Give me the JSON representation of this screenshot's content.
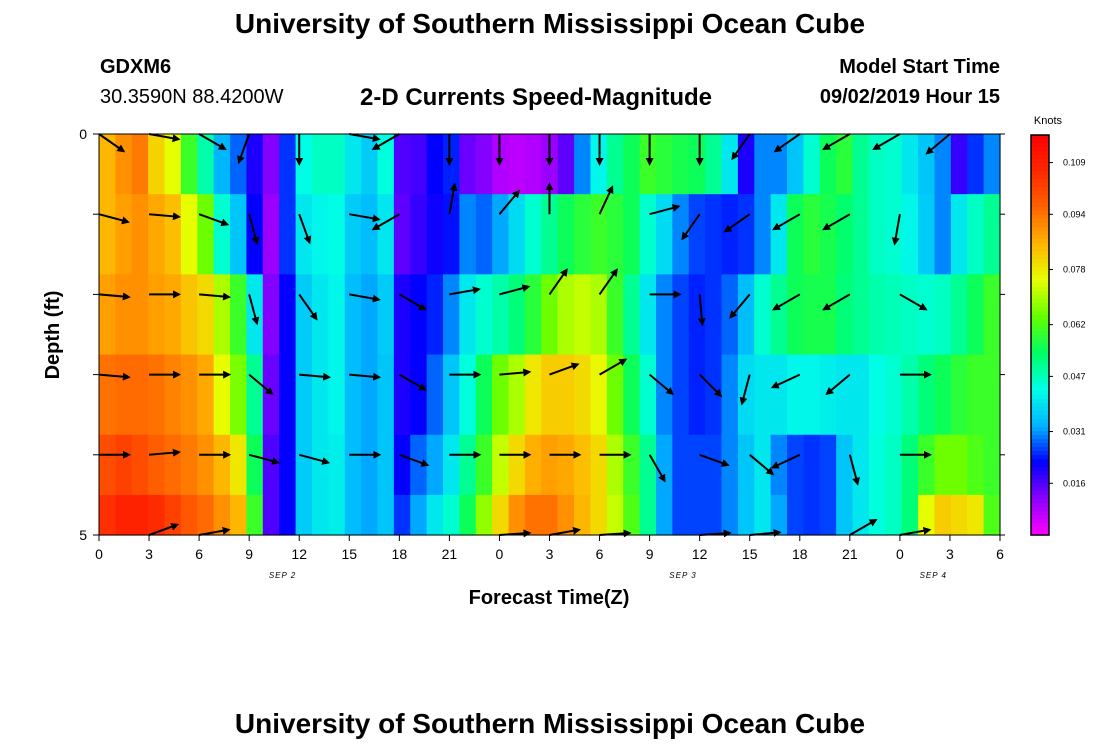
{
  "header": {
    "title": "University of Southern Mississippi Ocean Cube",
    "station_id": "GDXM6",
    "station_coords": "30.3590N 88.4200W",
    "plot_title": "2-D Currents Speed-Magnitude",
    "model_label": "Model Start Time",
    "model_time": "09/02/2019 Hour 15"
  },
  "footer": {
    "title": "University of Southern Mississippi Ocean Cube"
  },
  "chart_data": {
    "type": "heatmap",
    "xlabel": "Forecast Time(Z)",
    "ylabel": "Depth (ft)",
    "x_tick_labels": [
      "0",
      "3",
      "6",
      "9",
      "12",
      "15",
      "18",
      "21",
      "0",
      "3",
      "6",
      "9",
      "12",
      "15",
      "18",
      "21",
      "0",
      "3",
      "6"
    ],
    "date_labels": [
      {
        "text": "SEP 2",
        "hour": 11
      },
      {
        "text": "SEP 3",
        "hour": 35
      },
      {
        "text": "SEP 4",
        "hour": 50
      }
    ],
    "y_tick_labels": [
      "0",
      "5"
    ],
    "x_range_hours": [
      0,
      54
    ],
    "depth_range_ft": [
      0,
      5
    ],
    "colorbar": {
      "unit": "Knots",
      "min": 0.001,
      "max": 0.117,
      "ticks": [
        "0.109",
        "0.094",
        "0.078",
        "0.062",
        "0.047",
        "0.031",
        "0.016"
      ],
      "tick_values": [
        0.109,
        0.094,
        0.078,
        0.062,
        0.047,
        0.031,
        0.016
      ],
      "colors": [
        "#ff00ff",
        "#8a00ff",
        "#0000ff",
        "#00b4ff",
        "#00ffe6",
        "#00ff64",
        "#64ff00",
        "#e6ff00",
        "#ffb400",
        "#ff6400",
        "#ff2800",
        "#ff0000"
      ]
    },
    "depth_levels_ft": [
      0.25,
      1.25,
      2.25,
      3.25,
      4.25,
      4.75
    ],
    "speed_knots": [
      [
        0.085,
        0.09,
        0.093,
        0.081,
        0.075,
        0.06,
        0.048,
        0.033,
        0.028,
        0.02,
        0.012,
        0.025,
        0.043,
        0.046,
        0.046,
        0.04,
        0.036,
        0.044,
        0.016,
        0.017,
        0.022,
        0.024,
        0.014,
        0.012,
        0.008,
        0.007,
        0.008,
        0.01,
        0.015,
        0.03,
        0.042,
        0.05,
        0.055,
        0.06,
        0.058,
        0.056,
        0.055,
        0.05,
        0.04,
        0.02,
        0.03,
        0.03,
        0.035,
        0.045,
        0.055,
        0.058,
        0.05,
        0.046,
        0.045,
        0.04,
        0.035,
        0.03,
        0.018,
        0.025,
        0.03
      ],
      [
        0.085,
        0.088,
        0.09,
        0.087,
        0.084,
        0.075,
        0.065,
        0.045,
        0.035,
        0.022,
        0.01,
        0.025,
        0.04,
        0.042,
        0.043,
        0.036,
        0.034,
        0.04,
        0.015,
        0.018,
        0.021,
        0.023,
        0.03,
        0.028,
        0.032,
        0.038,
        0.045,
        0.05,
        0.055,
        0.058,
        0.06,
        0.058,
        0.055,
        0.045,
        0.038,
        0.03,
        0.026,
        0.025,
        0.024,
        0.025,
        0.03,
        0.04,
        0.055,
        0.058,
        0.056,
        0.053,
        0.05,
        0.046,
        0.045,
        0.042,
        0.036,
        0.03,
        0.04,
        0.046,
        0.05
      ],
      [
        0.088,
        0.09,
        0.09,
        0.088,
        0.087,
        0.083,
        0.08,
        0.07,
        0.06,
        0.04,
        0.012,
        0.022,
        0.036,
        0.04,
        0.042,
        0.034,
        0.032,
        0.036,
        0.02,
        0.022,
        0.024,
        0.03,
        0.04,
        0.045,
        0.048,
        0.052,
        0.058,
        0.065,
        0.07,
        0.072,
        0.07,
        0.06,
        0.05,
        0.04,
        0.03,
        0.026,
        0.024,
        0.025,
        0.028,
        0.034,
        0.045,
        0.05,
        0.055,
        0.056,
        0.056,
        0.052,
        0.05,
        0.048,
        0.047,
        0.046,
        0.045,
        0.046,
        0.05,
        0.055,
        0.06
      ],
      [
        0.094,
        0.095,
        0.095,
        0.094,
        0.092,
        0.09,
        0.087,
        0.075,
        0.066,
        0.05,
        0.014,
        0.022,
        0.036,
        0.04,
        0.042,
        0.034,
        0.032,
        0.035,
        0.02,
        0.022,
        0.028,
        0.035,
        0.044,
        0.055,
        0.065,
        0.07,
        0.078,
        0.082,
        0.082,
        0.08,
        0.076,
        0.065,
        0.055,
        0.045,
        0.03,
        0.026,
        0.024,
        0.025,
        0.03,
        0.038,
        0.04,
        0.04,
        0.042,
        0.042,
        0.041,
        0.04,
        0.04,
        0.043,
        0.045,
        0.048,
        0.052,
        0.055,
        0.058,
        0.06,
        0.06
      ],
      [
        0.1,
        0.102,
        0.1,
        0.097,
        0.095,
        0.093,
        0.09,
        0.085,
        0.078,
        0.055,
        0.016,
        0.022,
        0.036,
        0.04,
        0.041,
        0.034,
        0.032,
        0.035,
        0.022,
        0.028,
        0.032,
        0.04,
        0.05,
        0.06,
        0.072,
        0.08,
        0.086,
        0.088,
        0.087,
        0.084,
        0.08,
        0.07,
        0.06,
        0.05,
        0.032,
        0.026,
        0.026,
        0.026,
        0.03,
        0.035,
        0.04,
        0.03,
        0.026,
        0.025,
        0.026,
        0.035,
        0.04,
        0.044,
        0.046,
        0.052,
        0.06,
        0.065,
        0.065,
        0.062,
        0.06
      ],
      [
        0.105,
        0.108,
        0.108,
        0.106,
        0.102,
        0.098,
        0.095,
        0.09,
        0.085,
        0.06,
        0.016,
        0.022,
        0.036,
        0.04,
        0.041,
        0.034,
        0.032,
        0.035,
        0.025,
        0.032,
        0.04,
        0.045,
        0.055,
        0.068,
        0.08,
        0.09,
        0.094,
        0.094,
        0.09,
        0.085,
        0.08,
        0.072,
        0.062,
        0.05,
        0.032,
        0.026,
        0.026,
        0.026,
        0.03,
        0.035,
        0.04,
        0.032,
        0.026,
        0.025,
        0.026,
        0.035,
        0.04,
        0.044,
        0.046,
        0.052,
        0.075,
        0.082,
        0.08,
        0.078,
        0.062
      ]
    ],
    "vectors": {
      "hours": [
        0,
        3,
        6,
        9,
        12,
        15,
        18,
        21,
        24,
        27,
        30,
        33,
        36,
        39,
        42,
        45,
        48,
        51,
        54
      ],
      "depths_ft": [
        0,
        1,
        2,
        3,
        4,
        5
      ],
      "directions_deg": [
        [
          125,
          100,
          120,
          200,
          180,
          100,
          240,
          180,
          180,
          180,
          180,
          180,
          180,
          215,
          235,
          240,
          240,
          230,
          null
        ],
        [
          105,
          95,
          110,
          165,
          160,
          100,
          240,
          10,
          40,
          0,
          25,
          75,
          215,
          235,
          240,
          240,
          190,
          null,
          null
        ],
        [
          95,
          90,
          95,
          165,
          145,
          100,
          120,
          80,
          75,
          35,
          35,
          90,
          175,
          220,
          240,
          240,
          120,
          null,
          null
        ],
        [
          95,
          90,
          90,
          130,
          95,
          95,
          120,
          90,
          85,
          70,
          60,
          130,
          135,
          195,
          245,
          230,
          90,
          null,
          null
        ],
        [
          90,
          85,
          90,
          105,
          105,
          90,
          110,
          90,
          90,
          90,
          90,
          150,
          110,
          130,
          245,
          165,
          90,
          null,
          null
        ],
        [
          null,
          70,
          80,
          null,
          null,
          null,
          null,
          null,
          90,
          80,
          90,
          null,
          90,
          85,
          null,
          60,
          80,
          null,
          null
        ]
      ]
    }
  }
}
